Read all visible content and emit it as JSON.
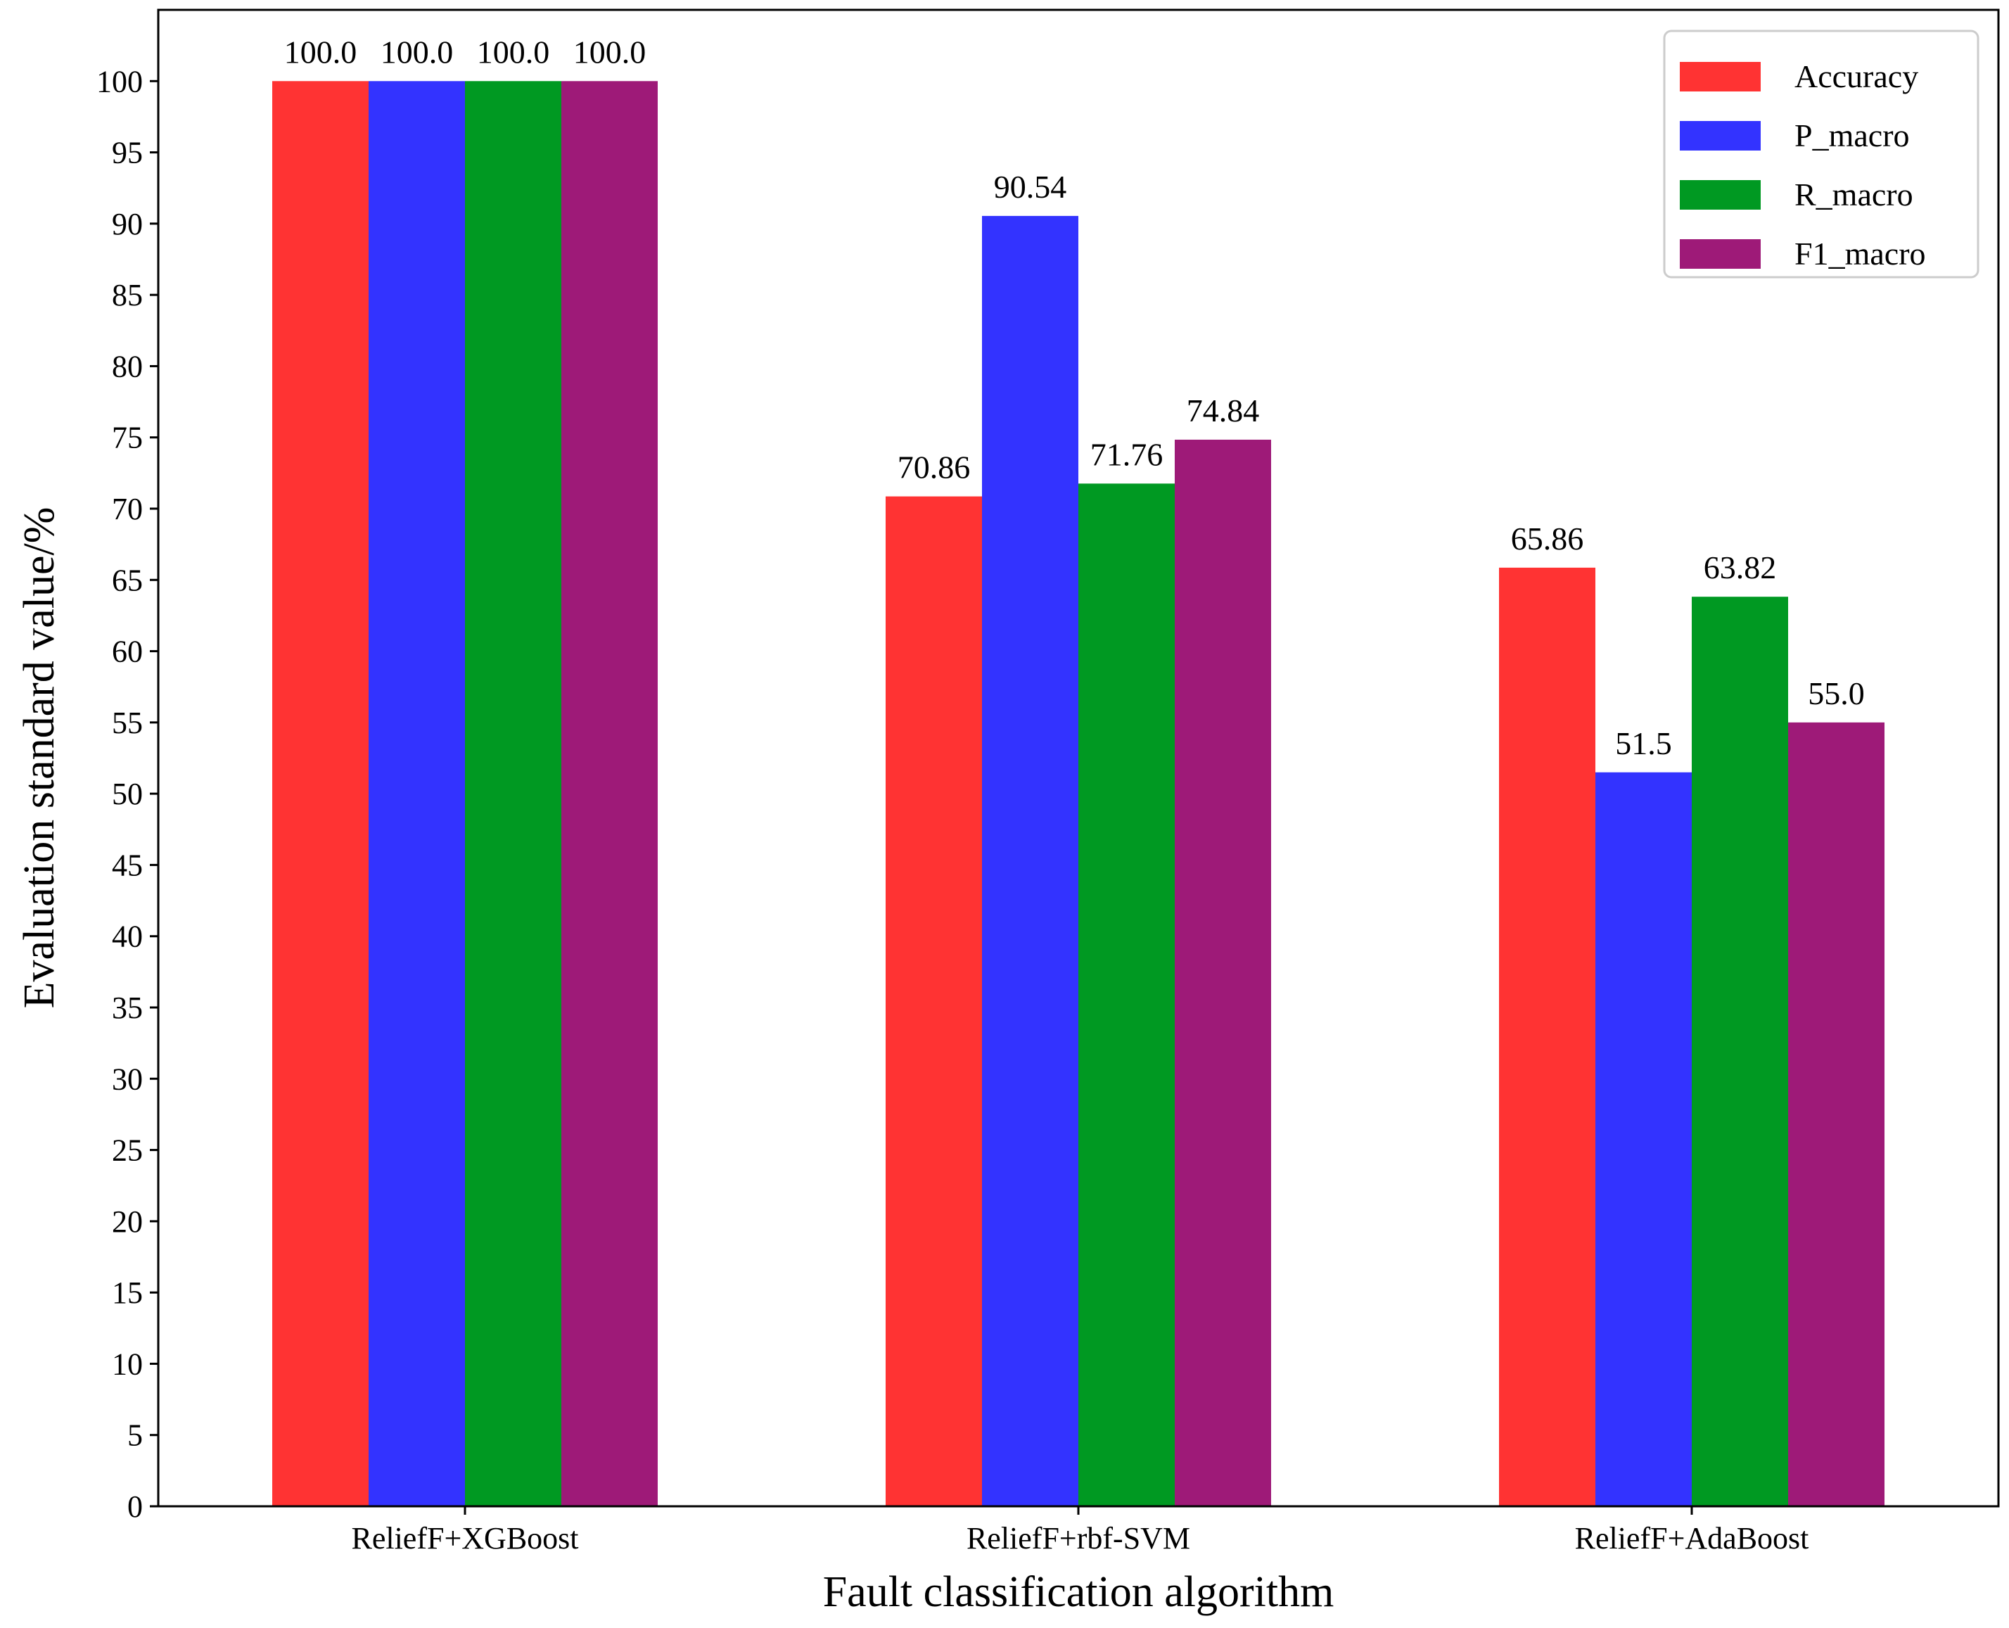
{
  "chart_data": {
    "type": "bar",
    "title": "",
    "xlabel": "Fault classification algorithm",
    "ylabel": "Evaluation standard value/%",
    "categories": [
      "ReliefF+XGBoost",
      "ReliefF+rbf-SVM",
      "ReliefF+AdaBoost"
    ],
    "series": [
      {
        "name": "Accuracy",
        "color": "#ff3333",
        "values": [
          100.0,
          70.86,
          65.86
        ],
        "labels": [
          "100.0",
          "70.86",
          "65.86"
        ]
      },
      {
        "name": "P_macro",
        "color": "#3333ff",
        "values": [
          100.0,
          90.54,
          51.5
        ],
        "labels": [
          "100.0",
          "90.54",
          "51.5"
        ]
      },
      {
        "name": "R_macro",
        "color": "#009922",
        "values": [
          100.0,
          71.76,
          63.82
        ],
        "labels": [
          "100.0",
          "71.76",
          "63.82"
        ]
      },
      {
        "name": "F1_macro",
        "color": "#9e1a78",
        "values": [
          100.0,
          74.84,
          55.0
        ],
        "labels": [
          "100.0",
          "74.84",
          "55.0"
        ]
      }
    ],
    "ylim": [
      0,
      105
    ],
    "yticks": [
      0,
      5,
      10,
      15,
      20,
      25,
      30,
      35,
      40,
      45,
      50,
      55,
      60,
      65,
      70,
      75,
      80,
      85,
      90,
      95,
      100
    ],
    "grid": false,
    "legend_position": "top-right"
  }
}
